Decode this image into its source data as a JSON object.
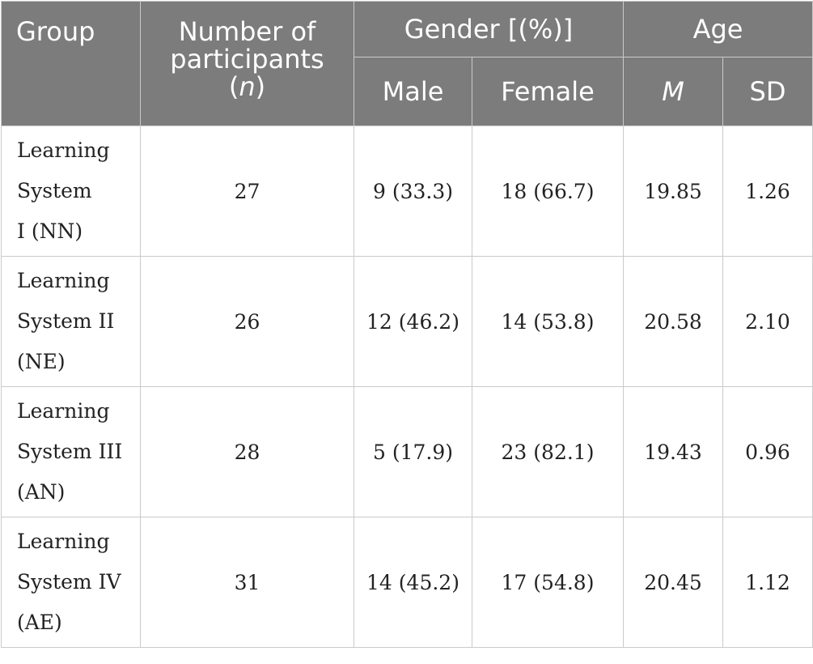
{
  "table": {
    "headers": {
      "group": "Group",
      "participants_line1": "Number of",
      "participants_line2": "participants",
      "participants_n_open": "(",
      "participants_n": "n",
      "participants_n_close": ")",
      "gender": "Gender [(%)]",
      "age": "Age",
      "male": "Male",
      "female": "Female",
      "mean": "M",
      "sd": "SD"
    },
    "rows": [
      {
        "group_lines": [
          "Learning",
          "System",
          "I (NN)"
        ],
        "n": "27",
        "male": "9 (33.3)",
        "female": "18 (66.7)",
        "mean": "19.85",
        "sd": "1.26"
      },
      {
        "group_lines": [
          "Learning",
          "System II",
          "(NE)"
        ],
        "n": "26",
        "male": "12 (46.2)",
        "female": "14 (53.8)",
        "mean": "20.58",
        "sd": "2.10"
      },
      {
        "group_lines": [
          "Learning",
          "System III",
          "(AN)"
        ],
        "n": "28",
        "male": "5 (17.9)",
        "female": "23 (82.1)",
        "mean": "19.43",
        "sd": "0.96"
      },
      {
        "group_lines": [
          "Learning",
          "System IV",
          "(AE)"
        ],
        "n": "31",
        "male": "14 (45.2)",
        "female": "17 (54.8)",
        "mean": "20.45",
        "sd": "1.12"
      }
    ]
  }
}
